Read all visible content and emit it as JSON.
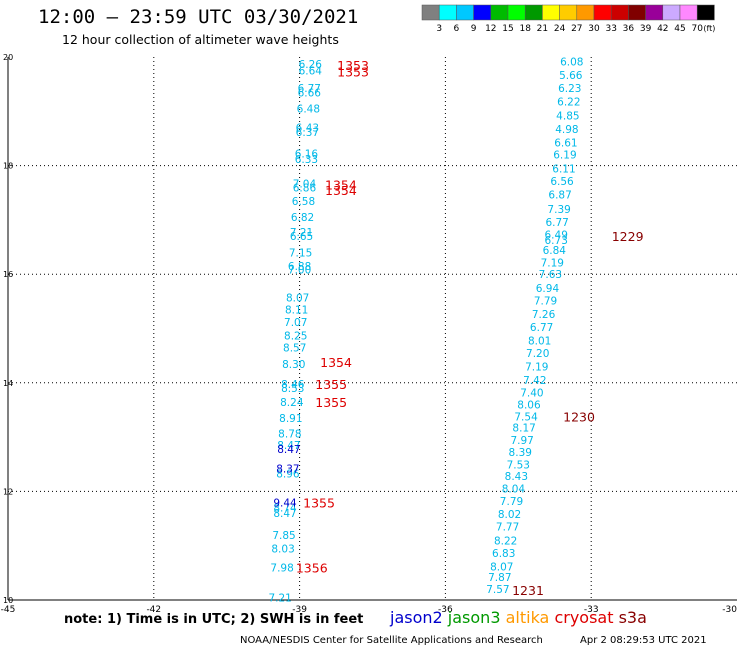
{
  "header": {
    "title": "12:00 – 23:59 UTC 03/30/2021",
    "subtitle": "12 hour collection of altimeter wave heights"
  },
  "colorbar": {
    "unit": "(ft)",
    "labels": [
      "3",
      "6",
      "9",
      "12",
      "15",
      "18",
      "21",
      "24",
      "27",
      "30",
      "33",
      "36",
      "39",
      "42",
      "45",
      "70"
    ],
    "colors": [
      "#808080",
      "#00ffff",
      "#00c8ff",
      "#0000ff",
      "#00bb00",
      "#00ff00",
      "#009900",
      "#ffff00",
      "#ffcc00",
      "#ff9900",
      "#ff0000",
      "#cc0000",
      "#800000",
      "#990099",
      "#ccaaff",
      "#ff88ff",
      "#000000"
    ]
  },
  "footer": {
    "note": "note: 1) Time is in UTC; 2) SWH is in feet",
    "credit": "NOAA/NESDIS Center for Satellite Applications and Research",
    "timestamp": "Apr  2 08:29:53 UTC 2021",
    "missions": [
      {
        "name": "jason2",
        "color": "#0000cc"
      },
      {
        "name": "jason3",
        "color": "#009900"
      },
      {
        "name": "altika",
        "color": "#ff9900"
      },
      {
        "name": "cryosat",
        "color": "#dd0000"
      },
      {
        "name": "s3a",
        "color": "#880000"
      }
    ]
  },
  "chart_data": {
    "type": "scatter",
    "xlim": [
      -45,
      -30
    ],
    "ylim": [
      10,
      20
    ],
    "x_ticks": [
      "-45",
      "-42",
      "-39",
      "-36",
      "-33",
      "-30"
    ],
    "y_ticks": [
      "10",
      "12",
      "14",
      "16",
      "18",
      "20"
    ],
    "grid": true,
    "series": [
      {
        "color": "#00b8e8",
        "points": [
          {
            "x": -38.78,
            "y": 19.87,
            "label": "6.26"
          },
          {
            "x": -38.78,
            "y": 19.75,
            "label": "6.64"
          },
          {
            "x": -38.8,
            "y": 19.43,
            "label": "6.77"
          },
          {
            "x": -38.8,
            "y": 19.35,
            "label": "6.66"
          },
          {
            "x": -38.82,
            "y": 19.05,
            "label": "6.48"
          },
          {
            "x": -38.84,
            "y": 18.7,
            "label": "6.43"
          },
          {
            "x": -38.84,
            "y": 18.62,
            "label": "6.37"
          },
          {
            "x": -38.86,
            "y": 18.22,
            "label": "6.16"
          },
          {
            "x": -38.86,
            "y": 18.12,
            "label": "6.33"
          },
          {
            "x": -38.9,
            "y": 17.67,
            "label": "7.04"
          },
          {
            "x": -38.9,
            "y": 17.6,
            "label": "6.86"
          },
          {
            "x": -38.92,
            "y": 17.35,
            "label": "6.58"
          },
          {
            "x": -38.94,
            "y": 17.05,
            "label": "6.82"
          },
          {
            "x": -38.96,
            "y": 16.78,
            "label": "7.21"
          },
          {
            "x": -38.96,
            "y": 16.7,
            "label": "6.65"
          },
          {
            "x": -38.98,
            "y": 16.4,
            "label": "7.15"
          },
          {
            "x": -39.0,
            "y": 16.15,
            "label": "6.88"
          },
          {
            "x": -39.0,
            "y": 16.09,
            "label": "7.00"
          },
          {
            "x": -39.04,
            "y": 15.57,
            "label": "8.07"
          },
          {
            "x": -39.06,
            "y": 15.35,
            "label": "8.11"
          },
          {
            "x": -39.08,
            "y": 15.12,
            "label": "7.07"
          },
          {
            "x": -39.08,
            "y": 14.87,
            "label": "8.25"
          },
          {
            "x": -39.1,
            "y": 14.65,
            "label": "8.57"
          },
          {
            "x": -39.12,
            "y": 14.35,
            "label": "8.30"
          },
          {
            "x": -39.14,
            "y": 13.98,
            "label": "8.46"
          },
          {
            "x": -39.14,
            "y": 13.9,
            "label": "8.53"
          },
          {
            "x": -39.16,
            "y": 13.65,
            "label": "8.24"
          },
          {
            "x": -39.18,
            "y": 13.35,
            "label": "8.91"
          },
          {
            "x": -39.2,
            "y": 13.07,
            "label": "8.78"
          },
          {
            "x": -39.22,
            "y": 12.85,
            "label": "8.47"
          },
          {
            "x": -39.24,
            "y": 12.33,
            "label": "8.96"
          },
          {
            "x": -39.3,
            "y": 11.7,
            "label": "8.74"
          },
          {
            "x": -39.3,
            "y": 11.6,
            "label": "8.47"
          },
          {
            "x": -39.32,
            "y": 11.2,
            "label": "7.85"
          },
          {
            "x": -39.34,
            "y": 10.95,
            "label": "8.03"
          },
          {
            "x": -39.36,
            "y": 10.6,
            "label": "7.98"
          },
          {
            "x": -39.4,
            "y": 10.05,
            "label": "7.21"
          },
          {
            "x": -33.4,
            "y": 19.92,
            "label": "6.08"
          },
          {
            "x": -33.42,
            "y": 19.67,
            "label": "5.66"
          },
          {
            "x": -33.44,
            "y": 19.43,
            "label": "6.23"
          },
          {
            "x": -33.46,
            "y": 19.18,
            "label": "6.22"
          },
          {
            "x": -33.48,
            "y": 18.92,
            "label": "4.85"
          },
          {
            "x": -33.5,
            "y": 18.67,
            "label": "4.98"
          },
          {
            "x": -33.52,
            "y": 18.43,
            "label": "6.61"
          },
          {
            "x": -33.54,
            "y": 18.2,
            "label": "6.19"
          },
          {
            "x": -33.56,
            "y": 17.95,
            "label": "6.11"
          },
          {
            "x": -33.6,
            "y": 17.72,
            "label": "6.56"
          },
          {
            "x": -33.64,
            "y": 17.47,
            "label": "6.87"
          },
          {
            "x": -33.66,
            "y": 17.2,
            "label": "7.39"
          },
          {
            "x": -33.7,
            "y": 16.96,
            "label": "6.77"
          },
          {
            "x": -33.72,
            "y": 16.73,
            "label": "6.49"
          },
          {
            "x": -33.72,
            "y": 16.63,
            "label": "6.73"
          },
          {
            "x": -33.76,
            "y": 16.45,
            "label": "6.84"
          },
          {
            "x": -33.8,
            "y": 16.22,
            "label": "7.19"
          },
          {
            "x": -33.84,
            "y": 16.0,
            "label": "7.63"
          },
          {
            "x": -33.9,
            "y": 15.75,
            "label": "6.94"
          },
          {
            "x": -33.94,
            "y": 15.52,
            "label": "7.79"
          },
          {
            "x": -33.98,
            "y": 15.27,
            "label": "7.26"
          },
          {
            "x": -34.02,
            "y": 15.03,
            "label": "6.77"
          },
          {
            "x": -34.06,
            "y": 14.78,
            "label": "8.01"
          },
          {
            "x": -34.1,
            "y": 14.55,
            "label": "7.20"
          },
          {
            "x": -34.12,
            "y": 14.3,
            "label": "7.19"
          },
          {
            "x": -34.16,
            "y": 14.05,
            "label": "7.42"
          },
          {
            "x": -34.22,
            "y": 13.82,
            "label": "7.40"
          },
          {
            "x": -34.28,
            "y": 13.6,
            "label": "8.06"
          },
          {
            "x": -34.34,
            "y": 13.38,
            "label": "7.54"
          },
          {
            "x": -34.38,
            "y": 13.18,
            "label": "8.17"
          },
          {
            "x": -34.42,
            "y": 12.95,
            "label": "7.97"
          },
          {
            "x": -34.46,
            "y": 12.73,
            "label": "8.39"
          },
          {
            "x": -34.5,
            "y": 12.5,
            "label": "7.53"
          },
          {
            "x": -34.54,
            "y": 12.28,
            "label": "8.43"
          },
          {
            "x": -34.6,
            "y": 12.05,
            "label": "8.04"
          },
          {
            "x": -34.64,
            "y": 11.82,
            "label": "7.79"
          },
          {
            "x": -34.68,
            "y": 11.58,
            "label": "8.02"
          },
          {
            "x": -34.72,
            "y": 11.35,
            "label": "7.77"
          },
          {
            "x": -34.76,
            "y": 11.1,
            "label": "8.22"
          },
          {
            "x": -34.8,
            "y": 10.87,
            "label": "6.83"
          },
          {
            "x": -34.84,
            "y": 10.62,
            "label": "8.07"
          },
          {
            "x": -34.88,
            "y": 10.42,
            "label": "7.87"
          },
          {
            "x": -34.92,
            "y": 10.2,
            "label": "7.57"
          }
        ]
      },
      {
        "color": "#0000cc",
        "points": [
          {
            "x": -39.22,
            "y": 12.78,
            "label": "8.47"
          },
          {
            "x": -39.24,
            "y": 12.42,
            "label": "8.37"
          },
          {
            "x": -39.3,
            "y": 11.8,
            "label": "9.44"
          }
        ]
      }
    ],
    "annotations": [
      {
        "x": -37.9,
        "y": 19.85,
        "text": "1353",
        "color": "#dd0000"
      },
      {
        "x": -37.9,
        "y": 19.73,
        "text": "1353",
        "color": "#dd0000"
      },
      {
        "x": -38.15,
        "y": 17.65,
        "text": "1354",
        "color": "#dd0000"
      },
      {
        "x": -38.15,
        "y": 17.55,
        "text": "1354",
        "color": "#dd0000"
      },
      {
        "x": -38.25,
        "y": 14.38,
        "text": "1354",
        "color": "#dd0000"
      },
      {
        "x": -38.35,
        "y": 13.98,
        "text": "1355",
        "color": "#dd0000"
      },
      {
        "x": -38.35,
        "y": 13.65,
        "text": "1355",
        "color": "#dd0000"
      },
      {
        "x": -38.6,
        "y": 11.8,
        "text": "1355",
        "color": "#dd0000"
      },
      {
        "x": -38.75,
        "y": 10.6,
        "text": "1356",
        "color": "#dd0000"
      },
      {
        "x": -32.25,
        "y": 16.7,
        "text": "1229",
        "color": "#880000"
      },
      {
        "x": -33.25,
        "y": 13.38,
        "text": "1230",
        "color": "#880000"
      },
      {
        "x": -34.3,
        "y": 10.18,
        "text": "1231",
        "color": "#880000"
      }
    ]
  }
}
